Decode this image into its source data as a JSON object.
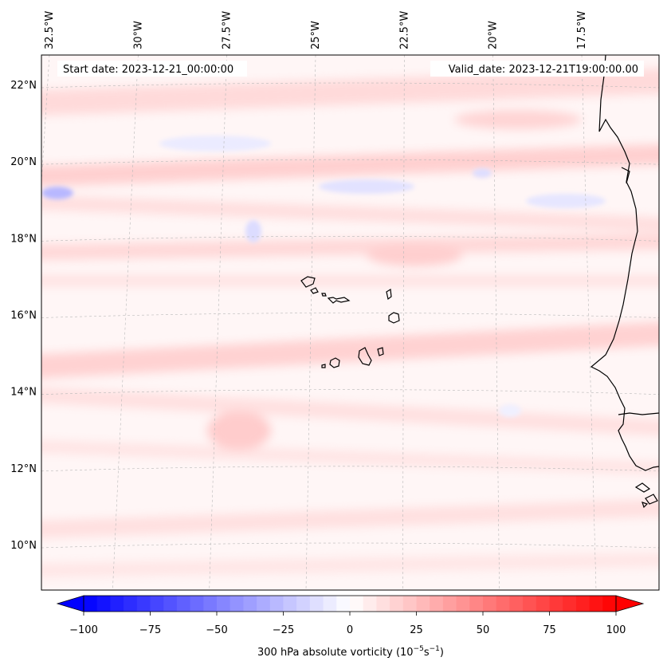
{
  "map": {
    "start_label": "Start date: 2023-12-21_00:00:00",
    "valid_label": "Valid_date: 2023-12-21T19:00:00.00",
    "lon_ticks": [
      {
        "label": "32.5°W",
        "value": -32.5
      },
      {
        "label": "30°W",
        "value": -30
      },
      {
        "label": "27.5°W",
        "value": -27.5
      },
      {
        "label": "25°W",
        "value": -25
      },
      {
        "label": "22.5°W",
        "value": -22.5
      },
      {
        "label": "20°W",
        "value": -20
      },
      {
        "label": "17.5°W",
        "value": -17.5
      }
    ],
    "lat_ticks": [
      {
        "label": "22°N",
        "value": 22
      },
      {
        "label": "20°N",
        "value": 20
      },
      {
        "label": "18°N",
        "value": 18
      },
      {
        "label": "16°N",
        "value": 16
      },
      {
        "label": "14°N",
        "value": 14
      },
      {
        "label": "12°N",
        "value": 12
      },
      {
        "label": "10°N",
        "value": 10
      }
    ],
    "gridlines": true,
    "field_colors": {
      "neg_strong": "#0000ff",
      "zero": "#ffffff",
      "pos_strong": "#ff0000"
    }
  },
  "colorbar": {
    "label_main": "300 hPa absolute vorticity (10",
    "label_exp1": "−5",
    "label_unit": "s",
    "label_exp2": "−1",
    "label_close": ")",
    "min": -100,
    "max": 100,
    "levels": 40,
    "ticks": [
      {
        "label": "−100",
        "value": -100
      },
      {
        "label": "−75",
        "value": -75
      },
      {
        "label": "−50",
        "value": -50
      },
      {
        "label": "−25",
        "value": -25
      },
      {
        "label": "0",
        "value": 0
      },
      {
        "label": "25",
        "value": 25
      },
      {
        "label": "50",
        "value": 50
      },
      {
        "label": "75",
        "value": 75
      },
      {
        "label": "100",
        "value": 100
      }
    ]
  }
}
